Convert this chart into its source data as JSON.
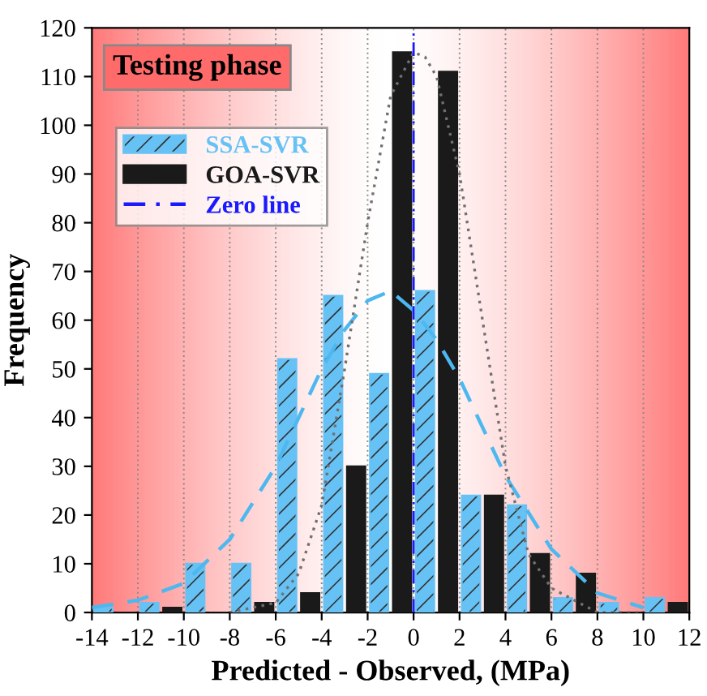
{
  "chart_data": {
    "type": "bar",
    "xlabel": "Predicted - Observed, (MPa)",
    "ylabel": "Frequency",
    "series": [
      {
        "name": "SSA-SVR",
        "color": "#66c2f5",
        "x": [
          -13.5,
          -11.5,
          -9.5,
          -7.5,
          -5.5,
          -3.5,
          -1.5,
          0.5,
          2.5,
          4.5,
          6.5,
          8.5,
          10.5
        ],
        "values": [
          1,
          2,
          10,
          10,
          52,
          65,
          49,
          66,
          24,
          22,
          3,
          2,
          3
        ]
      },
      {
        "name": "GOA-SVR",
        "color": "#1a1a1a",
        "x": [
          -12.5,
          -10.5,
          -8.5,
          -6.5,
          -4.5,
          -2.5,
          -0.5,
          1.5,
          3.5,
          5.5,
          7.5,
          9.5,
          11.5
        ],
        "values": [
          0,
          1,
          0,
          2,
          4,
          30,
          115,
          111,
          24,
          12,
          8,
          0,
          2
        ]
      },
      {
        "type": "line",
        "color": "#4db8f0",
        "line_style": "dashed",
        "x": [
          -14,
          -12,
          -10,
          -8,
          -6,
          -4,
          -3,
          -2,
          -1,
          0,
          1,
          2,
          4,
          6,
          8,
          10
        ],
        "values": [
          1,
          2.5,
          6,
          15,
          30,
          50,
          58,
          64,
          66,
          62,
          56,
          48,
          28,
          13,
          4,
          1
        ]
      },
      {
        "type": "line",
        "color": "#707070",
        "line_style": "dotted",
        "x": [
          -8,
          -6,
          -5,
          -4,
          -3,
          -2,
          -1,
          0,
          0.5,
          1,
          2,
          3,
          4,
          5,
          6,
          8,
          10
        ],
        "values": [
          0,
          2,
          8,
          22,
          50,
          80,
          106,
          115,
          114,
          110,
          90,
          60,
          30,
          12,
          5,
          0,
          0
        ]
      }
    ],
    "ref_lines": [
      {
        "axis": "x",
        "value": 0,
        "label": "Zero line",
        "color": "#1a1aff",
        "line_style": "dashdot"
      }
    ],
    "annotations": [
      "Testing phase"
    ],
    "xlim": [
      -14,
      12
    ],
    "xticks": [
      -14,
      -12,
      -10,
      -8,
      -6,
      -4,
      -2,
      0,
      2,
      4,
      6,
      8,
      10,
      12
    ],
    "ylim": [
      0,
      120
    ],
    "yticks": [
      0,
      10,
      20,
      30,
      40,
      50,
      60,
      70,
      80,
      90,
      100,
      110,
      120
    ],
    "grid": "x",
    "legend": "top left"
  }
}
